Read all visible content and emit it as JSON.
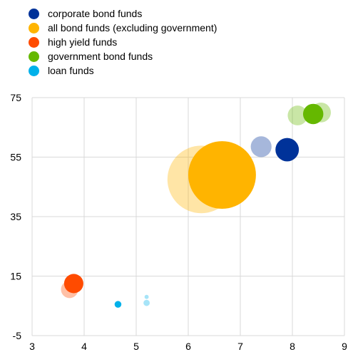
{
  "chart_data": {
    "type": "bubble",
    "title": "",
    "xlabel": "",
    "ylabel": "",
    "xlim": [
      3,
      9
    ],
    "ylim": [
      -5,
      75
    ],
    "x_ticks": [
      "3",
      "4",
      "5",
      "6",
      "7",
      "8",
      "9"
    ],
    "y_ticks": [
      "-5",
      "15",
      "35",
      "55",
      "75"
    ],
    "grid": true,
    "legend_position": "top-left",
    "series": [
      {
        "name": "corporate bond funds",
        "color": "#003299",
        "points": [
          {
            "x": 7.4,
            "y": 58.5,
            "size": 4,
            "faded": true
          },
          {
            "x": 7.9,
            "y": 57.5,
            "size": 4.5,
            "faded": false
          }
        ]
      },
      {
        "name": "all bond funds (excluding government)",
        "color": "#FFB400",
        "points": [
          {
            "x": 6.25,
            "y": 47.5,
            "size": 13,
            "faded": true
          },
          {
            "x": 6.65,
            "y": 49,
            "size": 13,
            "faded": false
          }
        ]
      },
      {
        "name": "high yield funds",
        "color": "#FF4B00",
        "points": [
          {
            "x": 3.72,
            "y": 10.5,
            "size": 3.3,
            "faded": true
          },
          {
            "x": 3.8,
            "y": 12.5,
            "size": 3.7,
            "faded": false
          }
        ]
      },
      {
        "name": "government bond funds",
        "color": "#65B800",
        "points": [
          {
            "x": 8.1,
            "y": 69,
            "size": 3.8,
            "faded": true
          },
          {
            "x": 8.55,
            "y": 70,
            "size": 3.8,
            "faded": true
          },
          {
            "x": 8.4,
            "y": 69.5,
            "size": 3.9,
            "faded": false
          }
        ]
      },
      {
        "name": "loan funds",
        "color": "#00B1EA",
        "points": [
          {
            "x": 5.2,
            "y": 8,
            "size": 0.8,
            "faded": true
          },
          {
            "x": 5.2,
            "y": 6,
            "size": 1.2,
            "faded": true
          },
          {
            "x": 4.65,
            "y": 5.5,
            "size": 1.3,
            "faded": false
          }
        ]
      }
    ]
  }
}
